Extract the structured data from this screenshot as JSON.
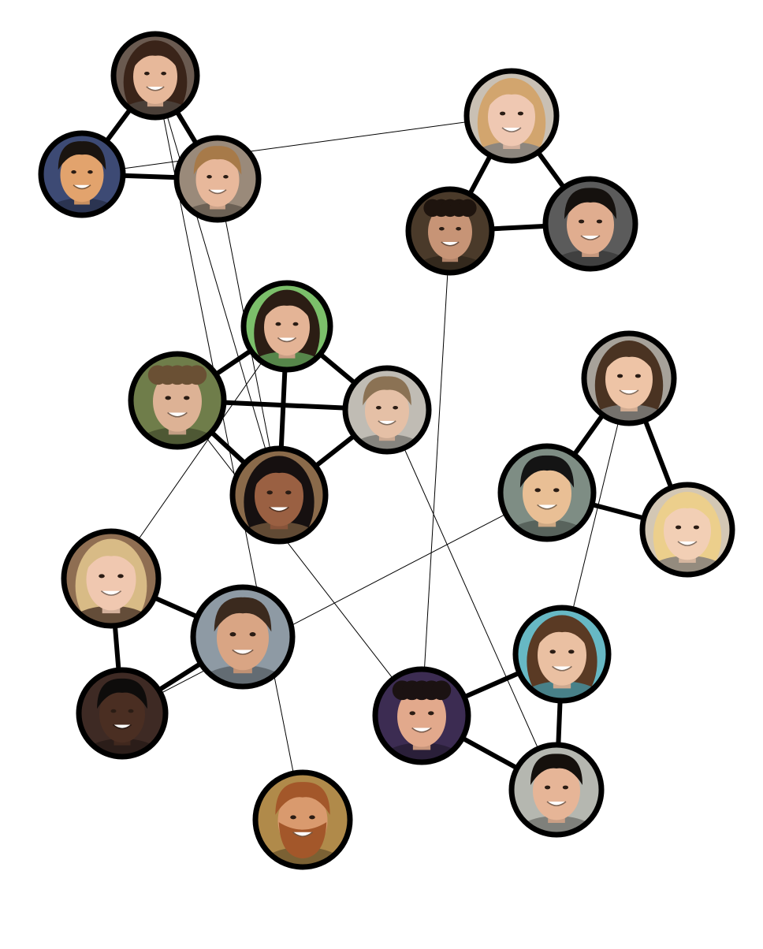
{
  "diagram": {
    "type": "social-network-graph",
    "edge_color": "#000000",
    "node_border_color": "#000000",
    "nodes": [
      {
        "id": "n01",
        "face": {
          "skin": "#e7b89a",
          "hair": "#3a2419",
          "bg": "#6a5a50",
          "style": "long"
        }
      },
      {
        "id": "n02",
        "face": {
          "skin": "#e2a36d",
          "hair": "#1a1410",
          "bg": "#3d4a74",
          "style": "short"
        }
      },
      {
        "id": "n03",
        "face": {
          "skin": "#e8b89b",
          "hair": "#a77a49",
          "bg": "#9a8a7a",
          "style": "short"
        }
      },
      {
        "id": "n04",
        "face": {
          "skin": "#efc8b2",
          "hair": "#d2a56e",
          "bg": "#c9c0b4",
          "style": "long"
        }
      },
      {
        "id": "n05",
        "face": {
          "skin": "#c79476",
          "hair": "#1e140e",
          "bg": "#4a3a2a",
          "style": "curly"
        }
      },
      {
        "id": "n06",
        "face": {
          "skin": "#e0ad8f",
          "hair": "#15110e",
          "bg": "#5b5b5b",
          "style": "short"
        }
      },
      {
        "id": "n07",
        "face": {
          "skin": "#e4b496",
          "hair": "#2b1d14",
          "bg": "#7bbf6a",
          "style": "long"
        }
      },
      {
        "id": "n08",
        "face": {
          "skin": "#ddb295",
          "hair": "#6a5034",
          "bg": "#6f7d4a",
          "style": "curly"
        }
      },
      {
        "id": "n09",
        "face": {
          "skin": "#e5c0a6",
          "hair": "#8b7254",
          "bg": "#c0bcb4",
          "style": "short"
        }
      },
      {
        "id": "n10",
        "face": {
          "skin": "#9a6042",
          "hair": "#161010",
          "bg": "#8a6a4a",
          "style": "long"
        }
      },
      {
        "id": "n11",
        "face": {
          "skin": "#eec4a6",
          "hair": "#4a3322",
          "bg": "#a7a29a",
          "style": "long"
        }
      },
      {
        "id": "n12",
        "face": {
          "skin": "#e9bf95",
          "hair": "#141414",
          "bg": "#7e8d84",
          "style": "short"
        }
      },
      {
        "id": "n13",
        "face": {
          "skin": "#f2cfb5",
          "hair": "#eccf8c",
          "bg": "#d3c7b4",
          "style": "long"
        }
      },
      {
        "id": "n14",
        "face": {
          "skin": "#f0c8b0",
          "hair": "#d8bb86",
          "bg": "#8f6e52",
          "style": "long"
        }
      },
      {
        "id": "n15",
        "face": {
          "skin": "#d9a584",
          "hair": "#3b2a1e",
          "bg": "#8e9aa4",
          "style": "short"
        }
      },
      {
        "id": "n16",
        "face": {
          "skin": "#4a2e22",
          "hair": "#0e0c0b",
          "bg": "#3e2a24",
          "style": "short"
        }
      },
      {
        "id": "n17",
        "face": {
          "skin": "#e2a98c",
          "hair": "#1b1212",
          "bg": "#3c2c52",
          "style": "curly"
        }
      },
      {
        "id": "n18",
        "face": {
          "skin": "#eac0a2",
          "hair": "#5a3a24",
          "bg": "#67b8c4",
          "style": "long"
        }
      },
      {
        "id": "n19",
        "face": {
          "skin": "#e6b597",
          "hair": "#15100c",
          "bg": "#b5b7b0",
          "style": "short"
        }
      },
      {
        "id": "n20",
        "face": {
          "skin": "#d99a6e",
          "hair": "#a3572a",
          "bg": "#b08a4a",
          "style": "beard"
        }
      }
    ],
    "strong_edges": [
      [
        "n01",
        "n02"
      ],
      [
        "n01",
        "n03"
      ],
      [
        "n02",
        "n03"
      ],
      [
        "n04",
        "n05"
      ],
      [
        "n04",
        "n06"
      ],
      [
        "n05",
        "n06"
      ],
      [
        "n07",
        "n08"
      ],
      [
        "n07",
        "n09"
      ],
      [
        "n07",
        "n10"
      ],
      [
        "n08",
        "n09"
      ],
      [
        "n08",
        "n10"
      ],
      [
        "n09",
        "n10"
      ],
      [
        "n11",
        "n12"
      ],
      [
        "n11",
        "n13"
      ],
      [
        "n12",
        "n13"
      ],
      [
        "n14",
        "n15"
      ],
      [
        "n14",
        "n16"
      ],
      [
        "n15",
        "n16"
      ],
      [
        "n17",
        "n18"
      ],
      [
        "n17",
        "n19"
      ],
      [
        "n18",
        "n19"
      ]
    ],
    "weak_edges": [
      [
        "n02",
        "n04"
      ],
      [
        "n01",
        "n10"
      ],
      [
        "n03",
        "n10"
      ],
      [
        "n01",
        "n20"
      ],
      [
        "n08",
        "n17"
      ],
      [
        "n05",
        "n17"
      ],
      [
        "n07",
        "n14"
      ],
      [
        "n09",
        "n19"
      ],
      [
        "n16",
        "n12"
      ],
      [
        "n11",
        "n18"
      ]
    ]
  }
}
